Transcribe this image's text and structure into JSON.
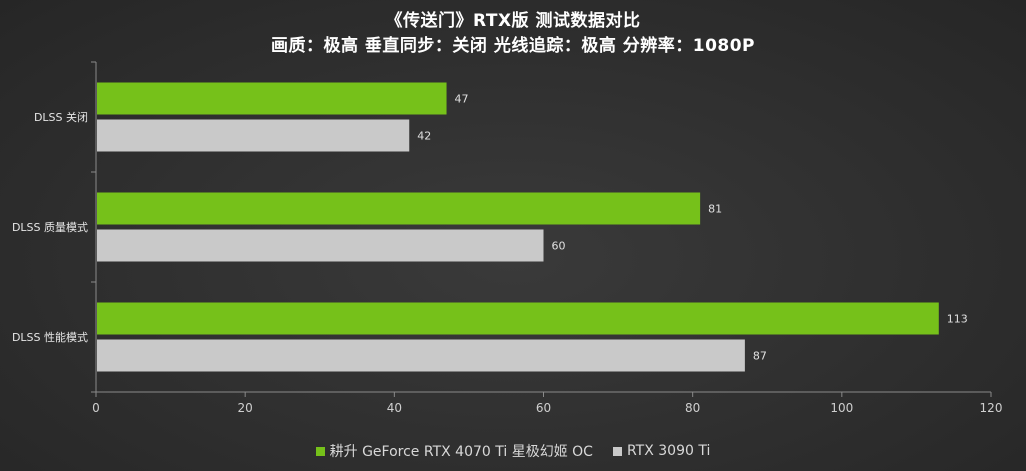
{
  "chart_data": {
    "type": "bar",
    "orientation": "horizontal",
    "title": "《传送门》RTX版 测试数据对比",
    "subtitle": "画质：极高 垂直同步：关闭 光线追踪：极高 分辨率：1080P",
    "categories": [
      "DLSS 关闭",
      "DLSS 质量模式",
      "DLSS 性能模式"
    ],
    "series": [
      {
        "name": "耕升 GeForce RTX 4070 Ti 星极幻姬 OC",
        "values": [
          47,
          81,
          113
        ],
        "color": "#76c11a"
      },
      {
        "name": "RTX 3090 Ti",
        "values": [
          42,
          60,
          87
        ],
        "color": "#c9c9c9"
      }
    ],
    "xlim": [
      0,
      120
    ],
    "xticks": [
      0,
      20,
      40,
      60,
      80,
      100,
      120
    ],
    "legend_position": "bottom",
    "grid": false
  }
}
